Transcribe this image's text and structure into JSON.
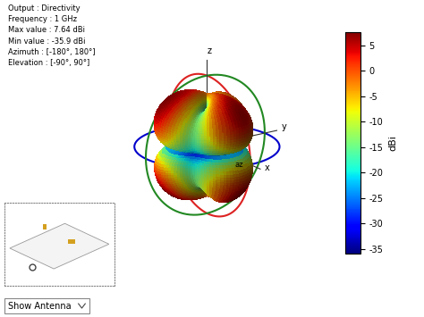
{
  "chart_data": {
    "type": "pattern3d",
    "info": [
      "Output : Directivity",
      "Frequency : 1 GHz",
      "Max value : 7.64 dBi",
      "Min value : -35.9 dBi",
      "Azimuth : [-180°, 180°]",
      "Elevation : [-90°, 90°]"
    ],
    "colorbar_label": "dBi",
    "colorbar_range": [
      -35.9,
      7.64
    ],
    "colorbar_ticks": [
      5,
      0,
      -5,
      -10,
      -15,
      -20,
      -25,
      -30,
      -35
    ],
    "axis_labels": {
      "x": "x",
      "y": "y",
      "z": "z",
      "azimuth": "az"
    },
    "control": "Show Antenna"
  }
}
